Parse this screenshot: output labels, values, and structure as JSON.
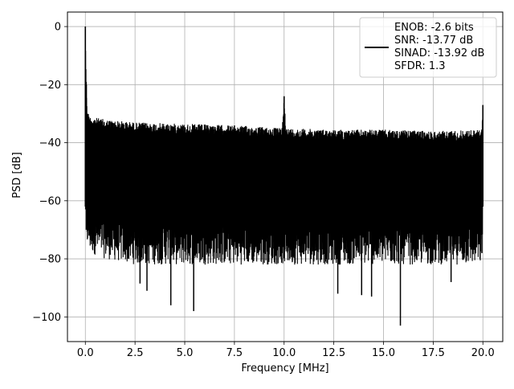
{
  "chart_data": {
    "type": "line",
    "title": "",
    "xlabel": "Frequency [MHz]",
    "ylabel": "PSD [dB]",
    "xlim": [
      -0.9,
      21.0
    ],
    "ylim": [
      -108.5,
      5.0
    ],
    "grid": true,
    "x_ticks": [
      0.0,
      2.5,
      5.0,
      7.5,
      10.0,
      12.5,
      15.0,
      17.5,
      20.0
    ],
    "x_tick_labels": [
      "0.0",
      "2.5",
      "5.0",
      "7.5",
      "10.0",
      "12.5",
      "15.0",
      "17.5",
      "20.0"
    ],
    "y_ticks": [
      0,
      -20,
      -40,
      -60,
      -80,
      -100
    ],
    "y_tick_labels": [
      "0",
      "−20",
      "−40",
      "−60",
      "−80",
      "−100"
    ],
    "legend": {
      "placement": "upper-right",
      "entries": [
        "ENOB: -2.6 bits",
        "SNR: -13.77 dB",
        "SINAD: -13.92 dB",
        "SFDR: 1.3"
      ]
    },
    "series": [
      {
        "color": "#000000",
        "description_points": {
          "x": [
            0.0,
            0.05,
            0.1,
            0.25,
            1.0,
            2.5,
            5.0,
            7.5,
            9.9,
            10.0,
            10.1,
            12.5,
            15.0,
            17.5,
            19.95,
            20.0
          ],
          "upper_envelope_db": [
            0.0,
            -20.0,
            -29.0,
            -31.0,
            -32.0,
            -33.0,
            -33.5,
            -34.0,
            -35.0,
            -24.0,
            -35.0,
            -35.5,
            -35.5,
            -36.0,
            -35.5,
            -27.0
          ],
          "lower_envelope_db": [
            -62.0,
            -70.0,
            -72.0,
            -74.0,
            -76.0,
            -78.0,
            -78.0,
            -78.0,
            -78.0,
            -78.0,
            -78.0,
            -78.0,
            -78.0,
            -78.0,
            -78.0,
            -62.0
          ]
        },
        "deep_minima": [
          {
            "x": 2.75,
            "y": -88.5
          },
          {
            "x": 3.1,
            "y": -91.0
          },
          {
            "x": 4.3,
            "y": -96.0
          },
          {
            "x": 5.45,
            "y": -98.0
          },
          {
            "x": 12.7,
            "y": -92.0
          },
          {
            "x": 13.9,
            "y": -92.5
          },
          {
            "x": 14.4,
            "y": -93.0
          },
          {
            "x": 15.85,
            "y": -103.0
          },
          {
            "x": 18.4,
            "y": -88.0
          }
        ]
      }
    ]
  }
}
